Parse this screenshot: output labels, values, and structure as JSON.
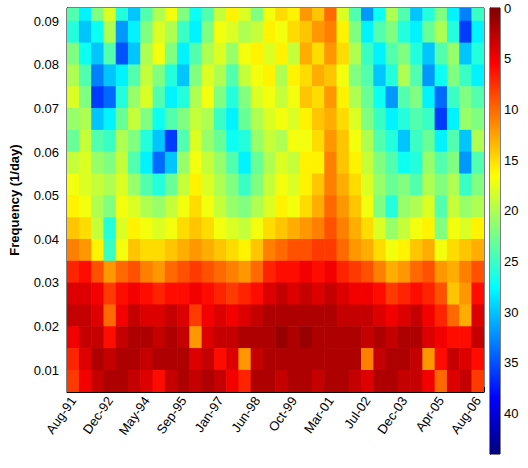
{
  "chart_data": {
    "type": "heatmap",
    "ylabel": "Frequency (1/day)",
    "categories": [
      "Aug-91",
      null,
      null,
      "Dec-92",
      null,
      null,
      "May-94",
      null,
      null,
      "Sep-95",
      null,
      null,
      "Jan-97",
      null,
      null,
      "Jun-98",
      null,
      null,
      "Oct-99",
      null,
      null,
      "Mar-01",
      null,
      null,
      "Jul-02",
      null,
      null,
      "Dec-03",
      null,
      null,
      "Apr-05",
      null,
      null,
      "Aug-06"
    ],
    "y": [
      0.0925,
      0.0875,
      0.0825,
      0.0775,
      0.0725,
      0.0675,
      0.0625,
      0.0575,
      0.0525,
      0.0475,
      0.0425,
      0.0375,
      0.0325,
      0.0275,
      0.0225,
      0.0175,
      0.0125,
      0.0075
    ],
    "cells": [
      [
        24,
        28,
        22,
        18,
        26,
        30,
        24,
        20,
        17,
        22,
        27,
        24,
        19,
        16,
        18,
        22,
        17,
        15,
        16,
        12,
        14,
        10,
        18,
        24,
        32,
        27,
        20,
        24,
        30,
        26,
        22,
        28,
        33,
        25
      ],
      [
        26,
        30,
        27,
        20,
        32,
        28,
        22,
        18,
        20,
        25,
        28,
        22,
        17,
        18,
        20,
        19,
        16,
        17,
        15,
        14,
        12,
        11,
        16,
        22,
        28,
        24,
        22,
        26,
        28,
        23,
        20,
        26,
        36,
        28
      ],
      [
        22,
        27,
        30,
        24,
        35,
        30,
        20,
        17,
        22,
        28,
        24,
        20,
        18,
        21,
        17,
        16,
        18,
        16,
        19,
        13,
        15,
        12,
        15,
        20,
        25,
        28,
        24,
        22,
        26,
        30,
        24,
        21,
        30,
        26
      ],
      [
        20,
        24,
        33,
        30,
        28,
        24,
        19,
        22,
        26,
        30,
        22,
        18,
        20,
        24,
        19,
        17,
        16,
        20,
        16,
        15,
        13,
        14,
        17,
        22,
        24,
        30,
        26,
        20,
        24,
        32,
        27,
        22,
        25,
        28
      ],
      [
        18,
        22,
        36,
        34,
        26,
        21,
        18,
        24,
        28,
        26,
        20,
        17,
        22,
        26,
        22,
        18,
        17,
        19,
        17,
        14,
        15,
        12,
        16,
        20,
        23,
        27,
        32,
        24,
        22,
        28,
        34,
        25,
        22,
        24
      ],
      [
        21,
        20,
        30,
        28,
        23,
        19,
        22,
        27,
        24,
        22,
        19,
        20,
        25,
        28,
        23,
        20,
        18,
        17,
        18,
        16,
        14,
        13,
        15,
        18,
        22,
        25,
        28,
        26,
        24,
        25,
        36,
        28,
        21,
        22
      ],
      [
        23,
        19,
        24,
        25,
        20,
        22,
        26,
        30,
        36,
        24,
        18,
        21,
        23,
        27,
        26,
        21,
        19,
        20,
        17,
        17,
        15,
        12,
        14,
        17,
        20,
        24,
        26,
        30,
        25,
        23,
        28,
        24,
        30,
        20
      ],
      [
        19,
        18,
        21,
        22,
        19,
        24,
        28,
        34,
        30,
        21,
        17,
        19,
        21,
        24,
        28,
        23,
        20,
        18,
        19,
        16,
        16,
        11,
        14,
        16,
        19,
        22,
        24,
        27,
        26,
        21,
        24,
        22,
        32,
        24
      ],
      [
        17,
        18,
        19,
        20,
        18,
        21,
        24,
        26,
        23,
        19,
        16,
        18,
        20,
        22,
        25,
        22,
        19,
        17,
        18,
        16,
        14,
        11,
        13,
        15,
        18,
        21,
        23,
        22,
        24,
        20,
        22,
        20,
        25,
        22
      ],
      [
        16,
        17,
        20,
        22,
        17,
        18,
        20,
        21,
        19,
        17,
        15,
        17,
        19,
        21,
        22,
        20,
        18,
        16,
        17,
        15,
        13,
        10,
        12,
        14,
        17,
        22,
        26,
        21,
        20,
        18,
        24,
        19,
        21,
        20
      ],
      [
        14,
        15,
        19,
        26,
        18,
        16,
        17,
        18,
        17,
        15,
        14,
        15,
        17,
        18,
        19,
        17,
        15,
        14,
        13,
        12,
        11,
        9,
        11,
        13,
        15,
        18,
        21,
        19,
        17,
        16,
        22,
        17,
        18,
        16
      ],
      [
        11,
        12,
        16,
        25,
        17,
        14,
        15,
        15,
        14,
        13,
        12,
        13,
        14,
        15,
        16,
        14,
        11,
        10,
        9,
        9,
        8,
        8,
        10,
        12,
        13,
        15,
        17,
        16,
        14,
        13,
        17,
        15,
        14,
        13
      ],
      [
        7,
        6,
        9,
        12,
        10,
        9,
        11,
        12,
        10,
        9,
        8,
        9,
        10,
        11,
        12,
        10,
        7,
        6,
        6,
        5,
        6,
        5,
        7,
        8,
        9,
        11,
        13,
        12,
        10,
        9,
        12,
        13,
        11,
        9
      ],
      [
        4,
        4,
        5,
        8,
        6,
        5,
        6,
        7,
        6,
        6,
        5,
        6,
        7,
        8,
        7,
        6,
        4,
        3,
        4,
        3,
        4,
        3,
        4,
        5,
        5,
        6,
        8,
        7,
        6,
        7,
        9,
        14,
        12,
        6
      ],
      [
        3,
        3,
        4,
        10,
        5,
        3,
        4,
        4,
        3,
        4,
        8,
        5,
        4,
        5,
        4,
        3,
        2,
        2,
        2,
        2,
        2,
        2,
        3,
        3,
        3,
        4,
        5,
        4,
        3,
        5,
        7,
        10,
        13,
        4
      ],
      [
        5,
        3,
        3,
        6,
        3,
        2,
        2,
        3,
        2,
        3,
        12,
        4,
        3,
        3,
        2,
        2,
        2,
        1,
        2,
        1,
        2,
        2,
        2,
        2,
        3,
        2,
        3,
        2,
        2,
        4,
        5,
        6,
        6,
        3
      ],
      [
        7,
        4,
        2,
        3,
        2,
        2,
        3,
        2,
        2,
        2,
        4,
        3,
        6,
        4,
        12,
        3,
        2,
        2,
        2,
        2,
        2,
        2,
        2,
        2,
        11,
        3,
        2,
        2,
        3,
        12,
        6,
        3,
        4,
        6
      ],
      [
        8,
        5,
        3,
        2,
        2,
        3,
        4,
        6,
        3,
        2,
        3,
        2,
        3,
        5,
        7,
        2,
        2,
        3,
        2,
        2,
        3,
        2,
        2,
        3,
        4,
        2,
        2,
        3,
        3,
        5,
        10,
        4,
        3,
        8
      ]
    ],
    "ylim": [
      0.005,
      0.093
    ],
    "yticks": [
      0.01,
      0.02,
      0.03,
      0.04,
      0.05,
      0.06,
      0.07,
      0.08,
      0.09
    ],
    "colorbar_lim": [
      0,
      44
    ],
    "colorbar_ticks": [
      0,
      5,
      10,
      15,
      20,
      25,
      30,
      35,
      40
    ]
  }
}
